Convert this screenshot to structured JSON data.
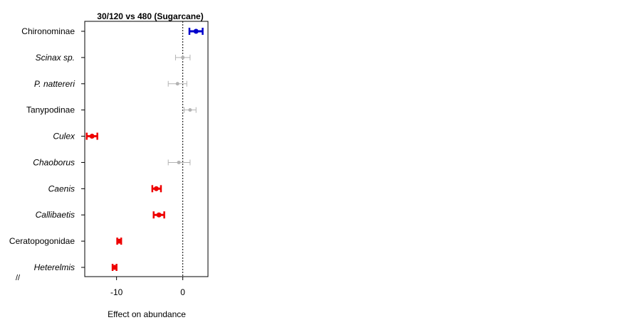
{
  "chart_data": {
    "type": "forest",
    "title": "30/120 vs 480 (Sugarcane)",
    "xlabel": "Effect on abundance",
    "ylabel": "",
    "xlim": [
      -14.8,
      3.8
    ],
    "x_ticks": [
      -10,
      0
    ],
    "x_tick_labels": [
      "-10",
      "0"
    ],
    "reference_line": 0,
    "grid": false,
    "axis_break_mark": "//",
    "colors": {
      "positive": "#0000cc",
      "negative": "#ee0000",
      "ns": "#b3b3b3"
    },
    "rows": [
      {
        "label": "Chironominae",
        "italic": false,
        "estimate": 2.0,
        "lower": 1.0,
        "upper": 3.0,
        "sig": "positive"
      },
      {
        "label": "Scinax sp.",
        "italic": true,
        "estimate": 0.0,
        "lower": -1.1,
        "upper": 1.1,
        "sig": "ns"
      },
      {
        "label": "P. nattereri",
        "italic": true,
        "estimate": -0.8,
        "lower": -2.2,
        "upper": 0.6,
        "sig": "ns"
      },
      {
        "label": "Tanypodinae",
        "italic": false,
        "estimate": 1.1,
        "lower": 0.2,
        "upper": 2.0,
        "sig": "ns"
      },
      {
        "label": "Culex",
        "italic": true,
        "estimate": -13.7,
        "lower": -14.5,
        "upper": -12.9,
        "sig": "negative"
      },
      {
        "label": "Chaoborus",
        "italic": true,
        "estimate": -0.6,
        "lower": -2.2,
        "upper": 1.1,
        "sig": "ns"
      },
      {
        "label": "Caenis",
        "italic": true,
        "estimate": -4.0,
        "lower": -4.6,
        "upper": -3.3,
        "sig": "negative"
      },
      {
        "label": "Callibaetis",
        "italic": true,
        "estimate": -3.6,
        "lower": -4.4,
        "upper": -2.8,
        "sig": "negative"
      },
      {
        "label": "Ceratopogonidae",
        "italic": false,
        "estimate": -9.6,
        "lower": -9.9,
        "upper": -9.3,
        "sig": "negative"
      },
      {
        "label": "Heterelmis",
        "italic": true,
        "estimate": -10.3,
        "lower": -10.6,
        "upper": -10.0,
        "sig": "negative"
      }
    ]
  }
}
